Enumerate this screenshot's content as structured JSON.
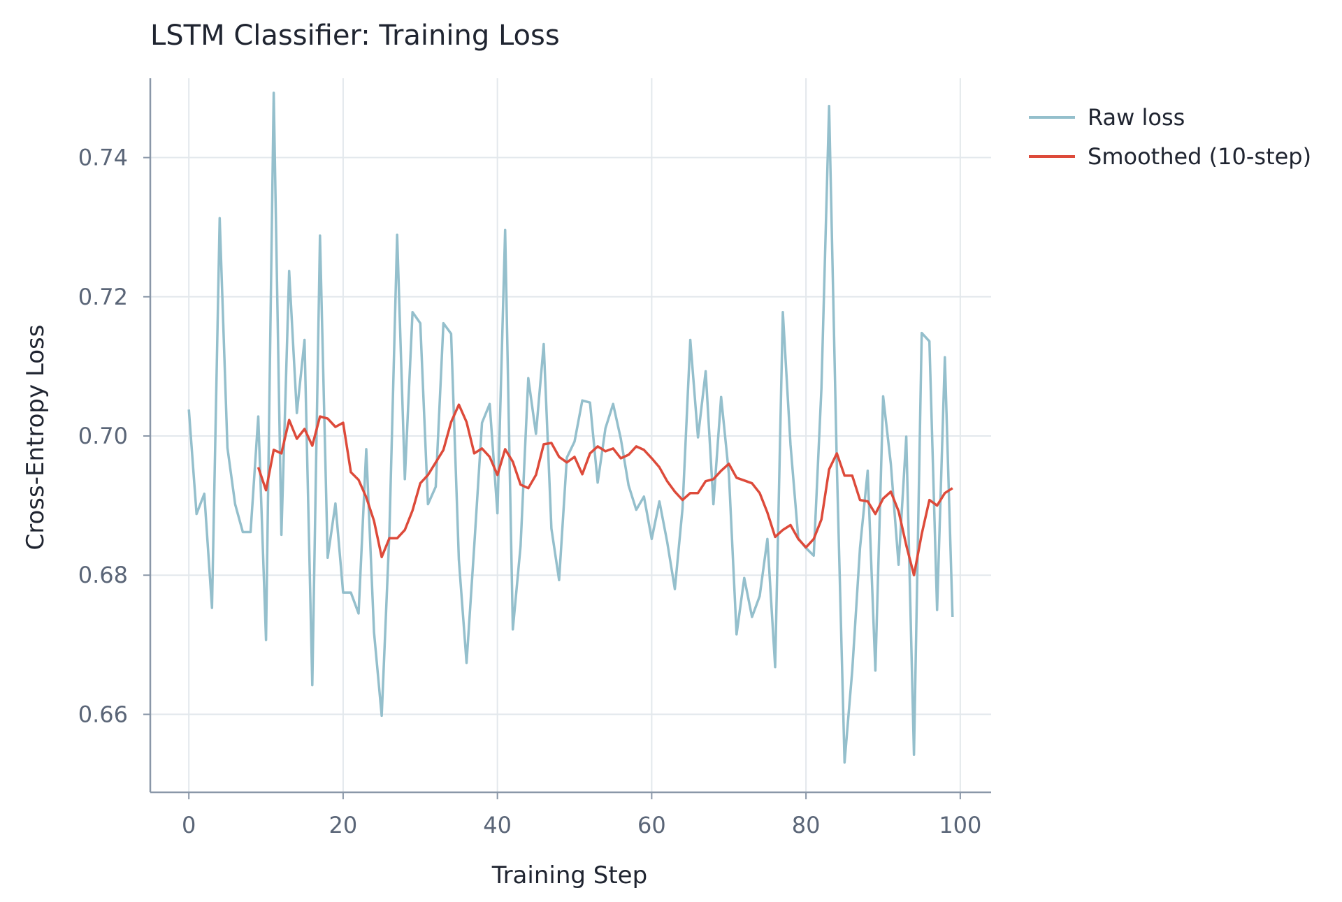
{
  "chart_data": {
    "type": "line",
    "title": "LSTM Classifier: Training Loss",
    "xlabel": "Training Step",
    "ylabel": "Cross-Entropy Loss",
    "xlim": [
      -5,
      104
    ],
    "ylim": [
      0.6488,
      0.7514
    ],
    "xticks": [
      0,
      20,
      40,
      60,
      80,
      100
    ],
    "yticks": [
      0.66,
      0.68,
      0.7,
      0.72,
      0.74
    ],
    "xtick_labels": [
      "0",
      "20",
      "40",
      "60",
      "80",
      "100"
    ],
    "ytick_labels": [
      "0.66",
      "0.68",
      "0.70",
      "0.72",
      "0.74"
    ],
    "grid": true,
    "legend_position": "outside-top-right",
    "colors": {
      "raw": "#94bfcc",
      "smoothed": "#dd4a3a",
      "grid": "#e3e8ec",
      "axis": "#8a97a8"
    },
    "series": [
      {
        "name": "Raw loss",
        "color": "#94bfcc",
        "x": [
          0,
          1,
          2,
          3,
          4,
          5,
          6,
          7,
          8,
          9,
          10,
          11,
          12,
          13,
          14,
          15,
          16,
          17,
          18,
          19,
          20,
          21,
          22,
          23,
          24,
          25,
          26,
          27,
          28,
          29,
          30,
          31,
          32,
          33,
          34,
          35,
          36,
          37,
          38,
          39,
          40,
          41,
          42,
          43,
          44,
          45,
          46,
          47,
          48,
          49,
          50,
          51,
          52,
          53,
          54,
          55,
          56,
          57,
          58,
          59,
          60,
          61,
          62,
          63,
          64,
          65,
          66,
          67,
          68,
          69,
          70,
          71,
          72,
          73,
          74,
          75,
          76,
          77,
          78,
          79,
          80,
          81,
          82,
          83,
          84,
          85,
          86,
          87,
          88,
          89,
          90,
          91,
          92,
          93,
          94,
          95,
          96,
          97,
          98,
          99
        ],
        "y": [
          0.7038,
          0.6888,
          0.6917,
          0.6753,
          0.7313,
          0.6983,
          0.6902,
          0.6862,
          0.6862,
          0.7028,
          0.6707,
          0.7493,
          0.6858,
          0.7237,
          0.7033,
          0.7138,
          0.6642,
          0.7288,
          0.6825,
          0.6903,
          0.6775,
          0.6775,
          0.6745,
          0.6981,
          0.6718,
          0.6598,
          0.6861,
          0.7289,
          0.6938,
          0.7178,
          0.7162,
          0.6902,
          0.6927,
          0.7162,
          0.7147,
          0.6822,
          0.6674,
          0.6842,
          0.7019,
          0.7046,
          0.6889,
          0.7296,
          0.6722,
          0.6842,
          0.7083,
          0.7003,
          0.7132,
          0.6867,
          0.6793,
          0.6969,
          0.6992,
          0.7051,
          0.7048,
          0.6933,
          0.7011,
          0.7046,
          0.6996,
          0.6929,
          0.6894,
          0.6913,
          0.6852,
          0.6906,
          0.6848,
          0.678,
          0.6896,
          0.7138,
          0.6998,
          0.7093,
          0.6902,
          0.7056,
          0.6946,
          0.6715,
          0.6796,
          0.674,
          0.677,
          0.6852,
          0.6668,
          0.7178,
          0.6987,
          0.6853,
          0.6839,
          0.6828,
          0.7068,
          0.7474,
          0.6957,
          0.6531,
          0.6663,
          0.6839,
          0.695,
          0.6663,
          0.7057,
          0.696,
          0.6815,
          0.6999,
          0.6542,
          0.7148,
          0.7136,
          0.675,
          0.7113,
          0.674
        ]
      },
      {
        "name": "Smoothed (10-step)",
        "color": "#dd4a3a",
        "x": [
          9,
          10,
          11,
          12,
          13,
          14,
          15,
          16,
          17,
          18,
          19,
          20,
          21,
          22,
          23,
          24,
          25,
          26,
          27,
          28,
          29,
          30,
          31,
          32,
          33,
          34,
          35,
          36,
          37,
          38,
          39,
          40,
          41,
          42,
          43,
          44,
          45,
          46,
          47,
          48,
          49,
          50,
          51,
          52,
          53,
          54,
          55,
          56,
          57,
          58,
          59,
          60,
          61,
          62,
          63,
          64,
          65,
          66,
          67,
          68,
          69,
          70,
          71,
          72,
          73,
          74,
          75,
          76,
          77,
          78,
          79,
          80,
          81,
          82,
          83,
          84,
          85,
          86,
          87,
          88,
          89,
          90,
          91,
          92,
          93,
          94,
          95,
          96,
          97,
          98,
          99
        ],
        "y": [
          0.6955,
          0.6922,
          0.698,
          0.6975,
          0.7023,
          0.6996,
          0.701,
          0.6986,
          0.7028,
          0.7025,
          0.7013,
          0.7019,
          0.6948,
          0.6937,
          0.6912,
          0.6878,
          0.6826,
          0.6853,
          0.6853,
          0.6865,
          0.6893,
          0.6932,
          0.6944,
          0.6962,
          0.698,
          0.702,
          0.7045,
          0.702,
          0.6975,
          0.6982,
          0.697,
          0.6944,
          0.6981,
          0.6963,
          0.693,
          0.6925,
          0.6944,
          0.6988,
          0.699,
          0.697,
          0.6962,
          0.697,
          0.6945,
          0.6975,
          0.6985,
          0.6978,
          0.6982,
          0.6968,
          0.6973,
          0.6985,
          0.698,
          0.6968,
          0.6955,
          0.6935,
          0.692,
          0.6908,
          0.6918,
          0.6918,
          0.6935,
          0.6938,
          0.695,
          0.696,
          0.694,
          0.6936,
          0.6932,
          0.6918,
          0.689,
          0.6855,
          0.6865,
          0.6872,
          0.6852,
          0.684,
          0.6852,
          0.688,
          0.6952,
          0.6975,
          0.6943,
          0.6943,
          0.6908,
          0.6906,
          0.6888,
          0.691,
          0.692,
          0.6892,
          0.6843,
          0.68,
          0.6859,
          0.6908,
          0.69,
          0.6918,
          0.6925
        ]
      }
    ]
  }
}
